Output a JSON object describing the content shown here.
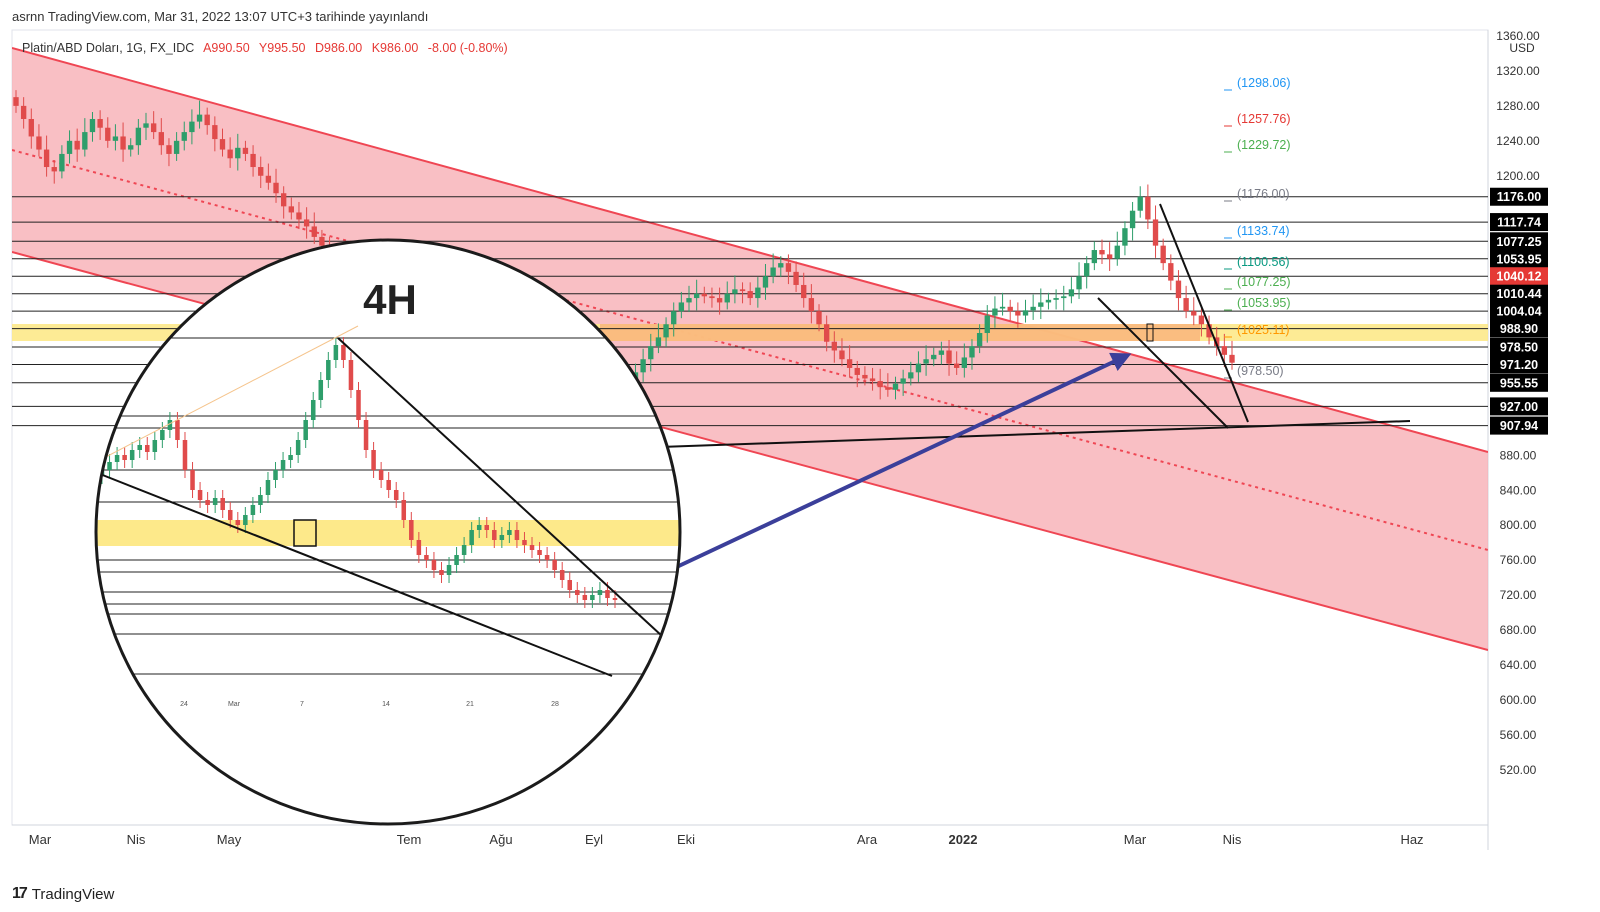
{
  "header": {
    "published": "asrnn TradingView.com, Mar 31, 2022 13:07 UTC+3 tarihinde yayınlandı"
  },
  "symbol_line": {
    "name": "Platin/ABD Doları, 1G, FX_IDC",
    "open": "A990.50",
    "high": "Y995.50",
    "low": "D986.00",
    "close": "K986.00",
    "change": "-8.00 (-0.80%)",
    "change_color": "#e53935"
  },
  "footer": {
    "brand": "TradingView"
  },
  "colors": {
    "channel_fill": "#f7a9b0",
    "channel_line": "#ef4653",
    "yellow_zone": "#fde98a",
    "orange_zone": "#f9b27a",
    "arrow": "#3b3f9a",
    "bull": "#2e9e6b",
    "bear": "#e04b4b"
  },
  "inset": {
    "label": "4H",
    "x_ticks": [
      "24",
      "Mar",
      "7",
      "14",
      "21",
      "28"
    ]
  },
  "chart_data": {
    "type": "candlestick",
    "title": "Platin/ABD Doları, 1G, FX_IDC",
    "currency": "USD",
    "ylim": [
      490,
      1360
    ],
    "y_ticks": [
      {
        "v": 1360,
        "label": "1360.00"
      },
      {
        "v": 1320,
        "label": "1320.00"
      },
      {
        "v": 1280,
        "label": "1280.00"
      },
      {
        "v": 1240,
        "label": "1240.00"
      },
      {
        "v": 1200,
        "label": "1200.00"
      },
      {
        "v": 880,
        "label": "880.00"
      },
      {
        "v": 840,
        "label": "840.00"
      },
      {
        "v": 800,
        "label": "800.00"
      },
      {
        "v": 760,
        "label": "760.00"
      },
      {
        "v": 720,
        "label": "720.00"
      },
      {
        "v": 680,
        "label": "680.00"
      },
      {
        "v": 640,
        "label": "640.00"
      },
      {
        "v": 600,
        "label": "600.00"
      },
      {
        "v": 560,
        "label": "560.00"
      },
      {
        "v": 520,
        "label": "520.00"
      }
    ],
    "x_ticks": [
      "Mar",
      "Nis",
      "May",
      "Tem",
      "Ağu",
      "Eyl",
      "Eki",
      "Ara",
      "2022",
      "Mar",
      "Nis",
      "Haz"
    ],
    "x_tick_bold": [
      false,
      false,
      false,
      false,
      false,
      false,
      false,
      false,
      true,
      false,
      false,
      false
    ],
    "price_labels": [
      {
        "v": 1176,
        "label": "1176.00",
        "bg": "#000000"
      },
      {
        "v": 1147,
        "label": "1117.74",
        "bg": "#000000"
      },
      {
        "v": 1125,
        "label": "1077.25",
        "bg": "#000000"
      },
      {
        "v": 1105,
        "label": "1053.95",
        "bg": "#000000"
      },
      {
        "v": 1085,
        "label": "1040.12",
        "bg": "#e53935"
      },
      {
        "v": 1065,
        "label": "1010.44",
        "bg": "#000000"
      },
      {
        "v": 1045,
        "label": "1004.04",
        "bg": "#000000"
      },
      {
        "v": 1025,
        "label": "988.90",
        "bg": "#000000"
      },
      {
        "v": 1004,
        "label": "978.50",
        "bg": "#000000"
      },
      {
        "v": 984,
        "label": "971.20",
        "bg": "#000000"
      },
      {
        "v": 963,
        "label": "955.55",
        "bg": "#000000"
      },
      {
        "v": 936,
        "label": "927.00",
        "bg": "#000000"
      },
      {
        "v": 914,
        "label": "907.94",
        "bg": "#000000"
      }
    ],
    "horizontal_levels": [
      1176,
      1117.74,
      1077.25,
      1053.95,
      1040.12,
      1010.44,
      1004.04,
      988.9,
      978.5,
      971.2,
      955.55,
      927,
      907.94
    ],
    "target_levels": [
      {
        "v": 1298.06,
        "label": "(1298.06)",
        "color": "#2196f3"
      },
      {
        "v": 1257.76,
        "label": "(1257.76)",
        "color": "#e53935"
      },
      {
        "v": 1229.72,
        "label": "(1229.72)",
        "color": "#4caf50"
      },
      {
        "v": 1176.0,
        "label": "(1176.00)",
        "color": "#787b86"
      },
      {
        "v": 1133.74,
        "label": "(1133.74)",
        "color": "#2196f3"
      },
      {
        "v": 1100.56,
        "label": "(1100.56)",
        "color": "#089981"
      },
      {
        "v": 1077.25,
        "label": "(1077.25)",
        "color": "#4caf50"
      },
      {
        "v": 1053.95,
        "label": "(1053.95)",
        "color": "#4caf50"
      },
      {
        "v": 1025.11,
        "label": "(1025.11)",
        "color": "#ff9800"
      },
      {
        "v": 978.5,
        "label": "(978.50)",
        "color": "#787b86"
      }
    ],
    "series": [
      {
        "name": "Platin/ABD Doları",
        "note": "daily candles",
        "values": [
          1280,
          1265,
          1245,
          1230,
          1210,
          1205,
          1225,
          1240,
          1230,
          1250,
          1265,
          1255,
          1240,
          1245,
          1230,
          1235,
          1255,
          1260,
          1250,
          1235,
          1225,
          1240,
          1250,
          1262,
          1270,
          1258,
          1242,
          1230,
          1220,
          1232,
          1225,
          1210,
          1200,
          1192,
          1180,
          1165,
          1158,
          1150,
          1142,
          1130,
          1120,
          1100,
          1080,
          1060,
          1045,
          1030,
          1020,
          1010,
          995,
          985,
          1000,
          1015,
          1025,
          1040,
          1060,
          1070,
          1080,
          1085,
          1090,
          1088,
          1080,
          1075,
          1065,
          1050,
          1040,
          1030,
          1020,
          1005,
          995,
          985,
          978,
          970,
          962,
          955,
          948,
          940,
          935,
          930,
          940,
          950,
          960,
          975,
          990,
          1005,
          1015,
          1030,
          1045,
          1055,
          1060,
          1065,
          1062,
          1060,
          1055,
          1065,
          1070,
          1068,
          1060,
          1072,
          1085,
          1095,
          1100,
          1090,
          1075,
          1060,
          1045,
          1030,
          1010,
          1000,
          990,
          980,
          972,
          968,
          965,
          958,
          955,
          962,
          968,
          975,
          985,
          990,
          995,
          1000,
          985,
          980,
          992,
          1005,
          1020,
          1040,
          1048,
          1050,
          1045,
          1040,
          1046,
          1050,
          1055,
          1058,
          1060,
          1062,
          1070,
          1085,
          1100,
          1115,
          1110,
          1105,
          1120,
          1140,
          1160,
          1176,
          1150,
          1120,
          1100,
          1080,
          1060,
          1045,
          1040,
          1030,
          1015,
          1005,
          995,
          986
        ]
      }
    ]
  }
}
